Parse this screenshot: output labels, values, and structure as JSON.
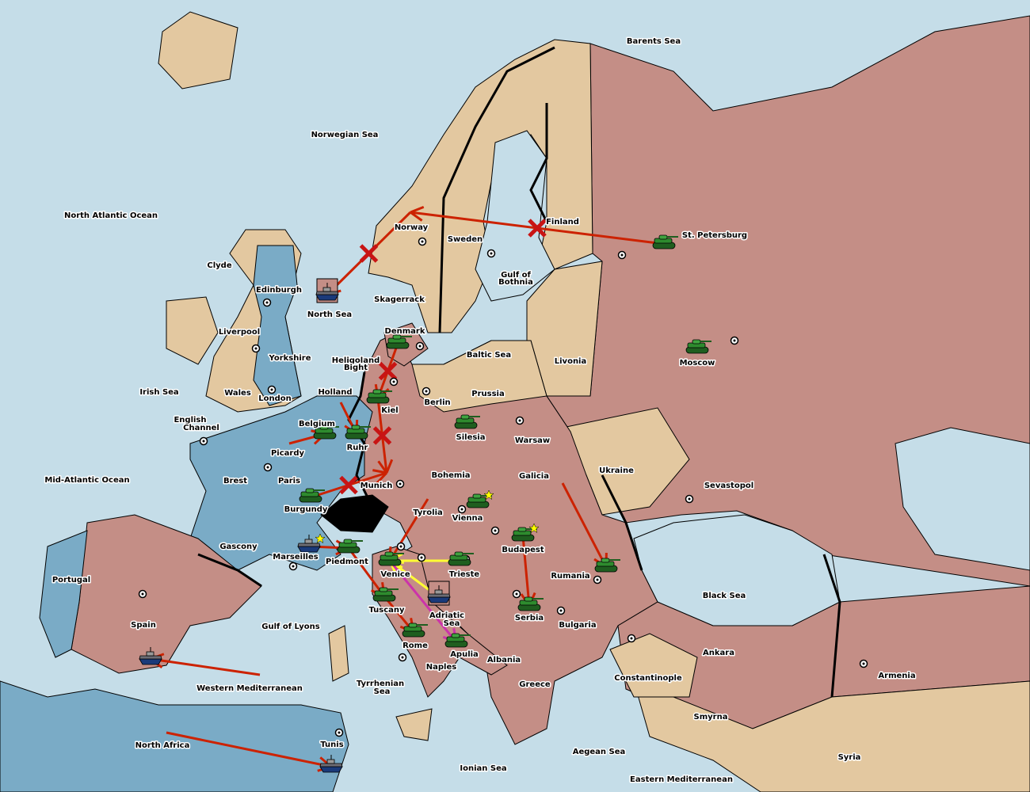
{
  "colors": {
    "sea": "#c5dde8",
    "neutral": "#e3c8a0",
    "russia_austria_germany_italy": "#c48e86",
    "france_england": "#7aabc6",
    "switzerland": "#000000",
    "army": "#2e8b2e",
    "fleet": "#6c6c74",
    "order_move": "#cc2200",
    "order_support_yellow": "#ffff33",
    "order_convoy_magenta": "#cc33aa",
    "supply_star": "#ffff00"
  },
  "labels": [
    "Barents Sea",
    "Norwegian Sea",
    "North Atlantic Ocean",
    "Norway",
    "Sweden",
    "Finland",
    "St. Petersburg",
    "Gulf of",
    "Bothnia",
    "Clyde",
    "Edinburgh",
    "North Sea",
    "Skagerrack",
    "Denmark",
    "Liverpool",
    "Yorkshire",
    "Heligoland",
    "Bight",
    "Baltic Sea",
    "Livonia",
    "Moscow",
    "Irish Sea",
    "Wales",
    "London",
    "Holland",
    "Prussia",
    "Berlin",
    "Kiel",
    "English",
    "Channel",
    "Belgium",
    "Silesia",
    "Warsaw",
    "Ruhr",
    "Picardy",
    "Ukraine",
    "Brest",
    "Paris",
    "Bohemia",
    "Galicia",
    "Mid-Atlantic Ocean",
    "Munich",
    "Sevastopol",
    "Burgundy",
    "Tyrolia",
    "Vienna",
    "Budapest",
    "Gascony",
    "Marseilles",
    "Piedmont",
    "Venice",
    "Trieste",
    "Rumania",
    "Portugal",
    "Black Sea",
    "Adriatic",
    "Sea",
    "Serbia",
    "Spain",
    "Gulf of Lyons",
    "Bulgaria",
    "Tuscany",
    "Rome",
    "Apulia",
    "Ankara",
    "Albania",
    "Naples",
    "Armenia",
    "Constantinople",
    "Greece",
    "Tyrrhenian",
    "Sea",
    "Western Mediterranean",
    "Smyrna",
    "North Africa",
    "Tunis",
    "Aegean Sea",
    "Syria",
    "Ionian Sea",
    "Eastern Mediterranean"
  ],
  "units": [
    {
      "type": "army",
      "province": "St. Petersburg"
    },
    {
      "type": "army",
      "province": "Moscow"
    },
    {
      "type": "army",
      "province": "Denmark"
    },
    {
      "type": "army",
      "province": "Kiel"
    },
    {
      "type": "army",
      "province": "Ruhr"
    },
    {
      "type": "army",
      "province": "Belgium"
    },
    {
      "type": "army",
      "province": "Silesia"
    },
    {
      "type": "army",
      "province": "Burgundy"
    },
    {
      "type": "army",
      "province": "Vienna",
      "star": true
    },
    {
      "type": "army",
      "province": "Budapest",
      "star": true
    },
    {
      "type": "army",
      "province": "Rumania"
    },
    {
      "type": "army",
      "province": "Serbia"
    },
    {
      "type": "army",
      "province": "Piedmont"
    },
    {
      "type": "army",
      "province": "Venice"
    },
    {
      "type": "army",
      "province": "Trieste"
    },
    {
      "type": "army",
      "province": "Tuscany"
    },
    {
      "type": "army",
      "province": "Rome"
    },
    {
      "type": "army",
      "province": "Apulia"
    },
    {
      "type": "fleet",
      "province": "North Sea",
      "boxed": true
    },
    {
      "type": "fleet",
      "province": "Marseilles",
      "star": true
    },
    {
      "type": "fleet",
      "province": "Adriatic Sea",
      "boxed": true
    },
    {
      "type": "fleet",
      "province": "Spain"
    },
    {
      "type": "fleet",
      "province": "Tunis"
    }
  ],
  "orders": [
    {
      "from": "St. Petersburg",
      "to": "Norway",
      "color": "red",
      "failed": true
    },
    {
      "from": "Norway",
      "to": "North Sea",
      "color": "red",
      "failed": true
    },
    {
      "from": "Denmark",
      "to": "Kiel",
      "color": "red",
      "failed": true
    },
    {
      "from": "Kiel",
      "to": "Munich",
      "color": "red",
      "failed": true
    },
    {
      "from": "Burgundy",
      "to": "Munich",
      "color": "red",
      "failed": true
    },
    {
      "from": "Picardy",
      "to": "Belgium",
      "color": "red"
    },
    {
      "from": "Holland",
      "to": "Ruhr",
      "color": "red"
    },
    {
      "from": "Galicia",
      "to": "Rumania",
      "color": "red"
    },
    {
      "from": "Budapest",
      "to": "Serbia",
      "color": "red"
    },
    {
      "from": "Piedmont",
      "to": "Tuscany",
      "color": "red"
    },
    {
      "from": "Tuscany",
      "to": "Rome",
      "color": "red"
    },
    {
      "from": "Tyrolia",
      "to": "Venice",
      "color": "red"
    },
    {
      "from": "Marseilles",
      "to": "Piedmont",
      "color": "red"
    },
    {
      "from": "Western Mediterranean",
      "to": "Spain",
      "color": "red"
    },
    {
      "from": "North Africa",
      "to": "Tunis",
      "color": "red"
    },
    {
      "from": "Trieste",
      "to": "Venice",
      "color": "yellow"
    },
    {
      "from": "Adriatic Sea",
      "to": "Venice",
      "color": "yellow"
    },
    {
      "from": "Venice",
      "to": "Apulia",
      "color": "magenta"
    }
  ]
}
